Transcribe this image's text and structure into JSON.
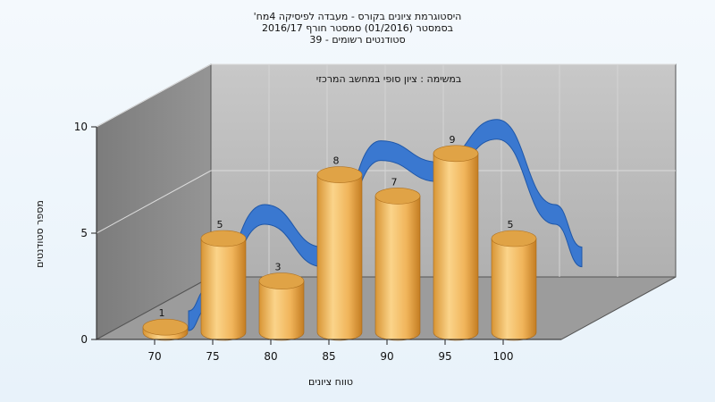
{
  "chart_data": {
    "type": "bar",
    "title_lines": [
      "היסטוגרמת ציונים בקורס - מעבדה לפיסיקה 4מח'",
      "בסמסטר   (01/2016)  סמסטר חורף 2016/17",
      "סטודנטים רשומים - 39"
    ],
    "annotation": "במשימה : ציון סופי במחשב המרכזי",
    "xlabel": "טווח ציונים",
    "ylabel": "מספר סטודנטים",
    "categories": [
      "70",
      "75",
      "80",
      "85",
      "90",
      "95",
      "100"
    ],
    "values": [
      1,
      5,
      3,
      8,
      7,
      9,
      5
    ],
    "bar_positions": [
      70,
      75,
      80,
      85,
      90,
      95,
      100
    ],
    "x_ticks": [
      70,
      75,
      80,
      85,
      90,
      95,
      100
    ],
    "y_ticks": [
      0,
      5,
      10
    ],
    "ylim": [
      0,
      10
    ],
    "grid": true,
    "colors": {
      "bar_light": "#fbd78e",
      "bar_mid": "#f0b45a",
      "bar_dark": "#c78225",
      "bar_top": "#e0a346",
      "ribbon": "#3a78d0",
      "ribbon_edge": "#1f57a8",
      "back_wall": "#b9b9b9",
      "side_wall": "#8a8a8a",
      "floor": "#9d9d9d"
    }
  }
}
